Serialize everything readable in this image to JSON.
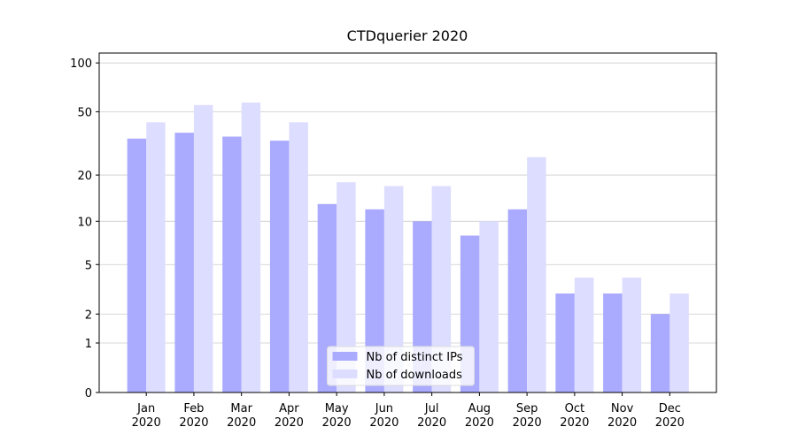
{
  "chart_data": {
    "type": "bar",
    "title": "CTDquerier 2020",
    "categories": [
      "Jan\n2020",
      "Feb\n2020",
      "Mar\n2020",
      "Apr\n2020",
      "May\n2020",
      "Jun\n2020",
      "Jul\n2020",
      "Aug\n2020",
      "Sep\n2020",
      "Oct\n2020",
      "Nov\n2020",
      "Dec\n2020"
    ],
    "series": [
      {
        "name": "Nb of distinct IPs",
        "color": "#aaaaff",
        "values": [
          34,
          37,
          35,
          33,
          13,
          12,
          10,
          8,
          12,
          3,
          3,
          2
        ]
      },
      {
        "name": "Nb of downloads",
        "color": "#ddddff",
        "values": [
          43,
          55,
          57,
          43,
          18,
          17,
          17,
          10,
          26,
          4,
          4,
          3
        ]
      }
    ],
    "yscale": "log1p",
    "ylim": [
      0,
      115
    ],
    "yticks": [
      0,
      1,
      2,
      5,
      10,
      20,
      50,
      100
    ],
    "grid": true,
    "legend": "lower center"
  }
}
